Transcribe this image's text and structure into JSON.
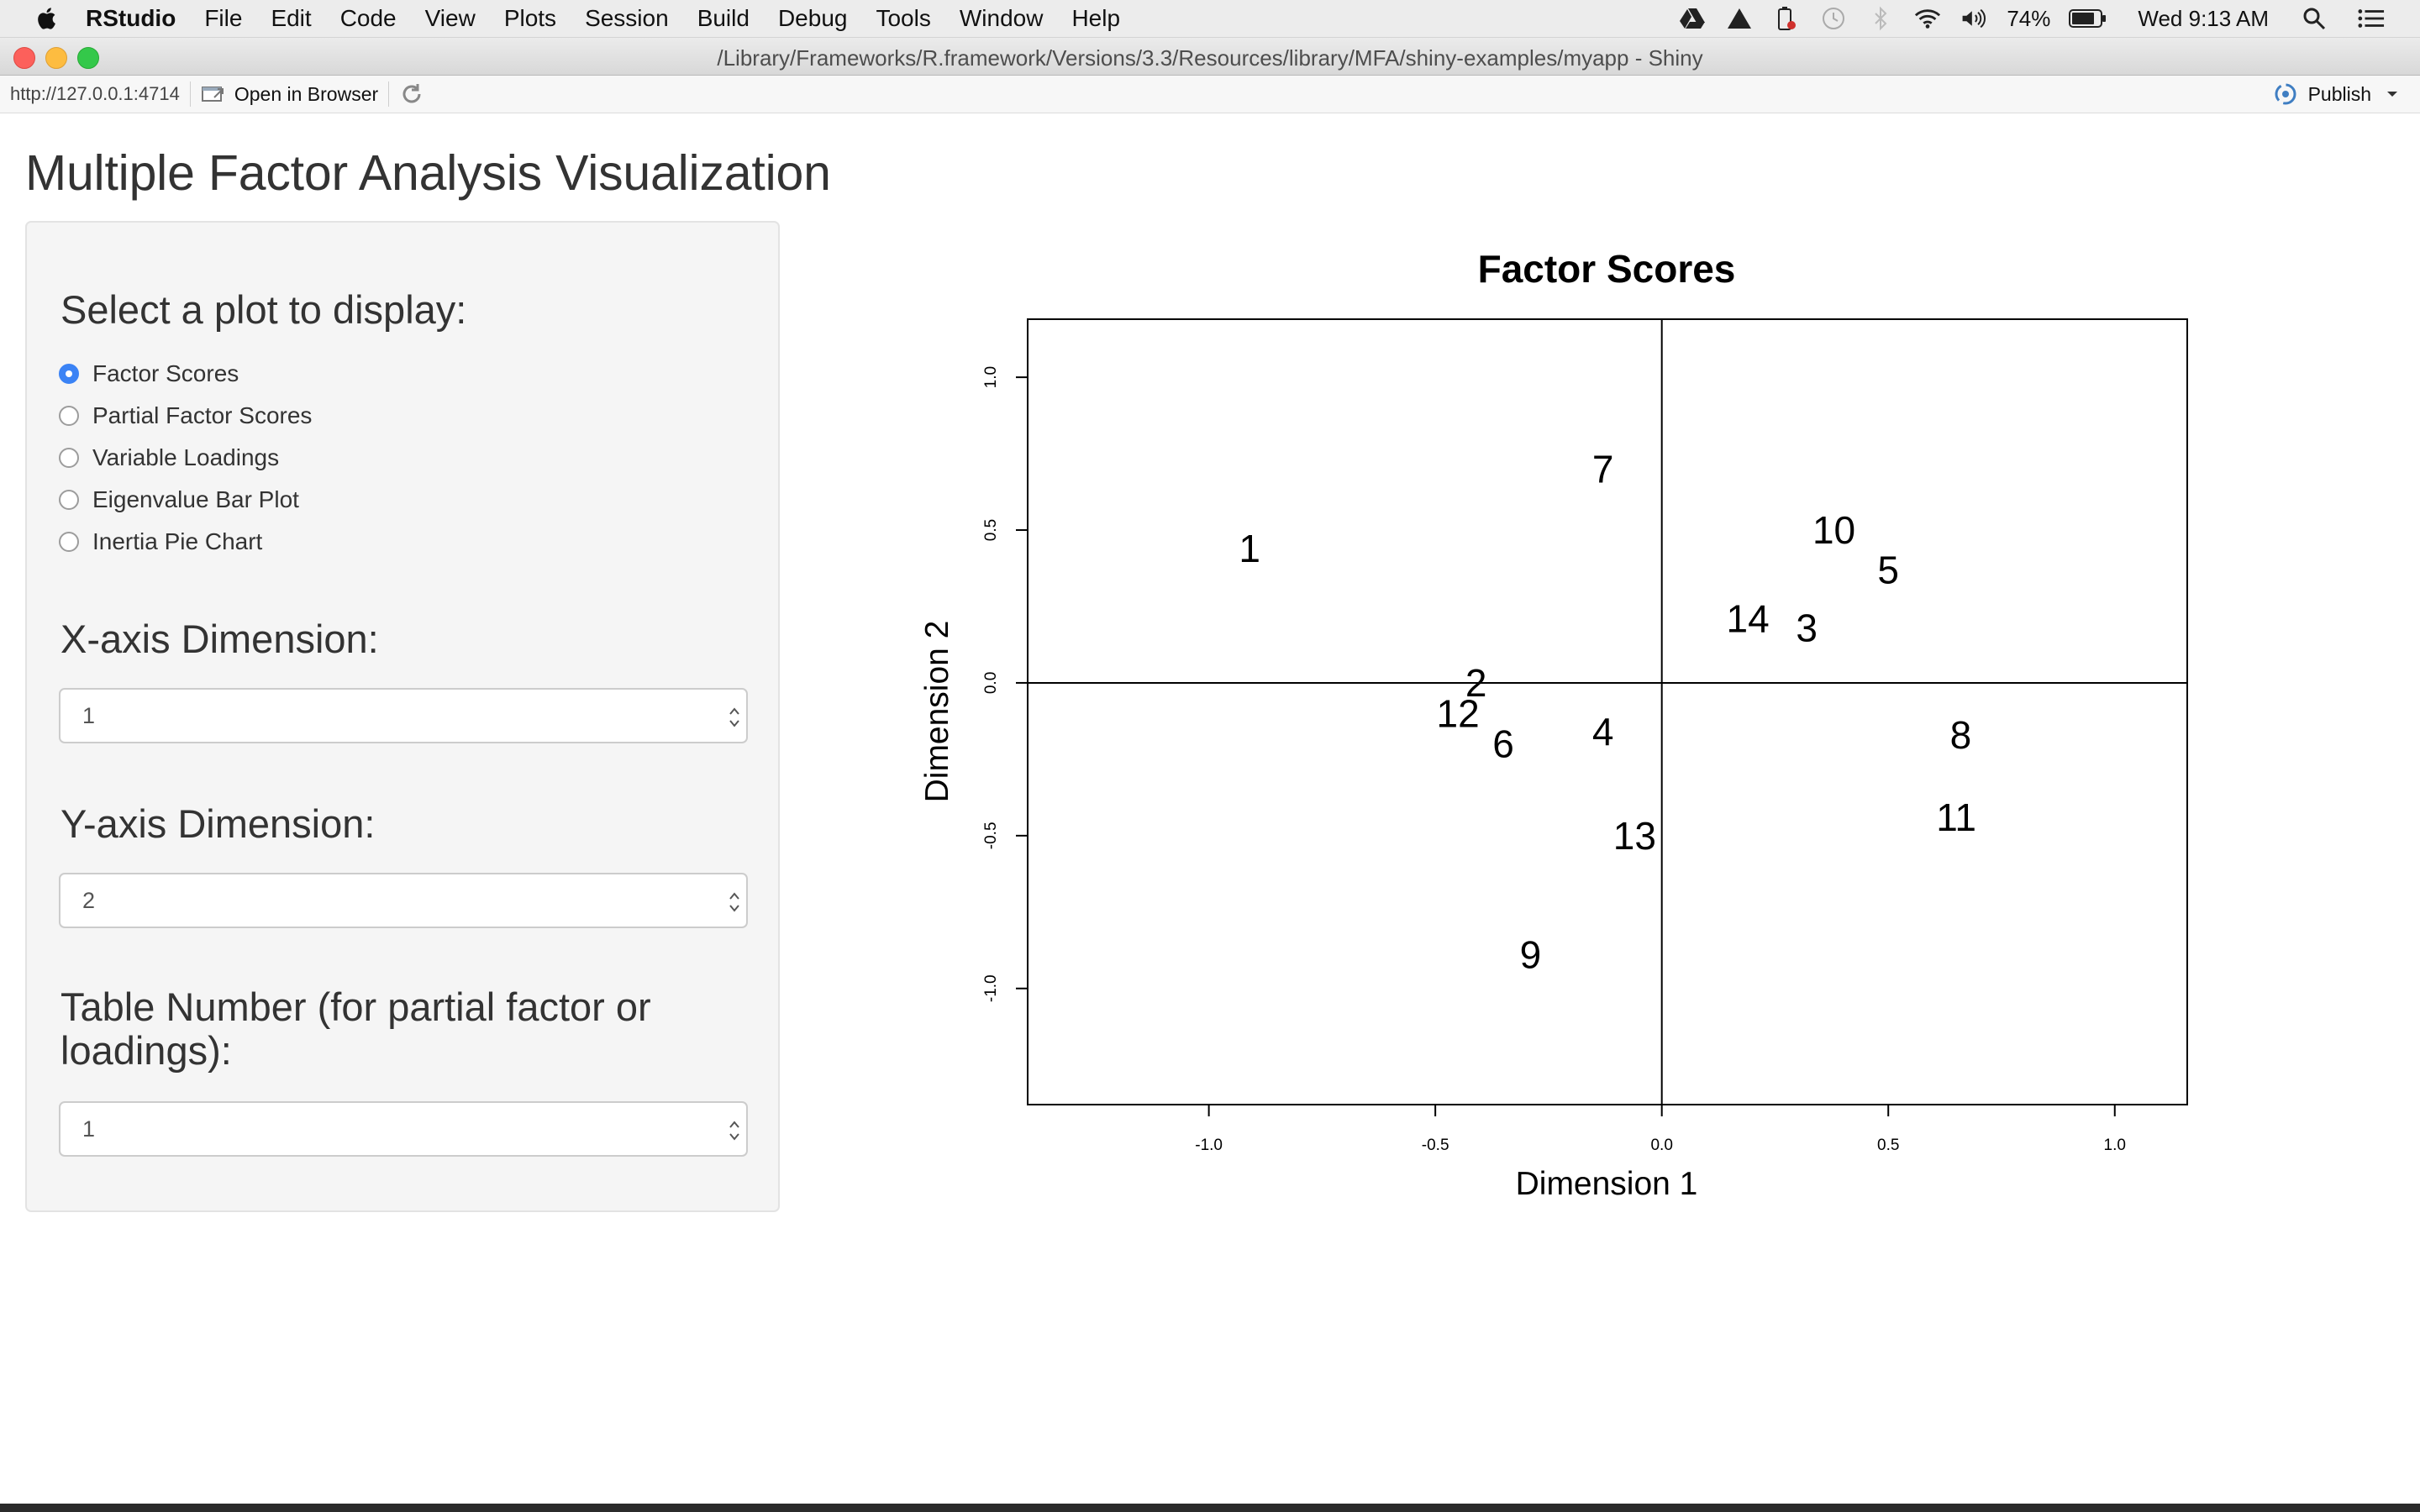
{
  "menubar": {
    "app_name": "RStudio",
    "items": [
      "File",
      "Edit",
      "Code",
      "View",
      "Plots",
      "Session",
      "Build",
      "Debug",
      "Tools",
      "Window",
      "Help"
    ],
    "battery": "74%",
    "clock": "Wed 9:13 AM"
  },
  "window": {
    "title": "/Library/Frameworks/R.framework/Versions/3.3/Resources/library/MFA/shiny-examples/myapp - Shiny"
  },
  "toolbar": {
    "url": "http://127.0.0.1:4714",
    "open_browser_label": "Open in Browser",
    "publish_label": "Publish"
  },
  "app": {
    "title": "Multiple Factor Analysis Visualization",
    "plot_select_label": "Select a plot to display:",
    "plot_options": [
      "Factor Scores",
      "Partial Factor Scores",
      "Variable Loadings",
      "Eigenvalue Bar Plot",
      "Inertia Pie Chart"
    ],
    "selected_plot": "Factor Scores",
    "x_dim_label": "X-axis Dimension:",
    "x_dim_value": "1",
    "y_dim_label": "Y-axis Dimension:",
    "y_dim_value": "2",
    "table_label": "Table Number (for partial factor or loadings):",
    "table_value": "1"
  },
  "chart_data": {
    "type": "scatter",
    "title": "Factor Scores",
    "xlabel": "Dimension 1",
    "ylabel": "Dimension 2",
    "xlim": [
      -1.4,
      1.16
    ],
    "ylim": [
      -1.38,
      1.19
    ],
    "x_ticks": [
      "-1.0",
      "-0.5",
      "0.0",
      "0.5",
      "1.0"
    ],
    "y_ticks": [
      "-1.0",
      "-0.5",
      "0.0",
      "0.5",
      "1.0"
    ],
    "reference_lines": {
      "x": 0,
      "y": 0
    },
    "points": [
      {
        "label": "1",
        "x": -0.91,
        "y": 0.44
      },
      {
        "label": "2",
        "x": -0.41,
        "y": 0.0
      },
      {
        "label": "3",
        "x": 0.32,
        "y": 0.18
      },
      {
        "label": "4",
        "x": -0.13,
        "y": -0.16
      },
      {
        "label": "5",
        "x": 0.5,
        "y": 0.37
      },
      {
        "label": "6",
        "x": -0.35,
        "y": -0.2
      },
      {
        "label": "7",
        "x": -0.13,
        "y": 0.7
      },
      {
        "label": "8",
        "x": 0.66,
        "y": -0.17
      },
      {
        "label": "9",
        "x": -0.29,
        "y": -0.89
      },
      {
        "label": "10",
        "x": 0.38,
        "y": 0.5
      },
      {
        "label": "11",
        "x": 0.65,
        "y": -0.44
      },
      {
        "label": "12",
        "x": -0.45,
        "y": -0.1
      },
      {
        "label": "13",
        "x": -0.06,
        "y": -0.5
      },
      {
        "label": "14",
        "x": 0.19,
        "y": 0.21
      }
    ]
  }
}
